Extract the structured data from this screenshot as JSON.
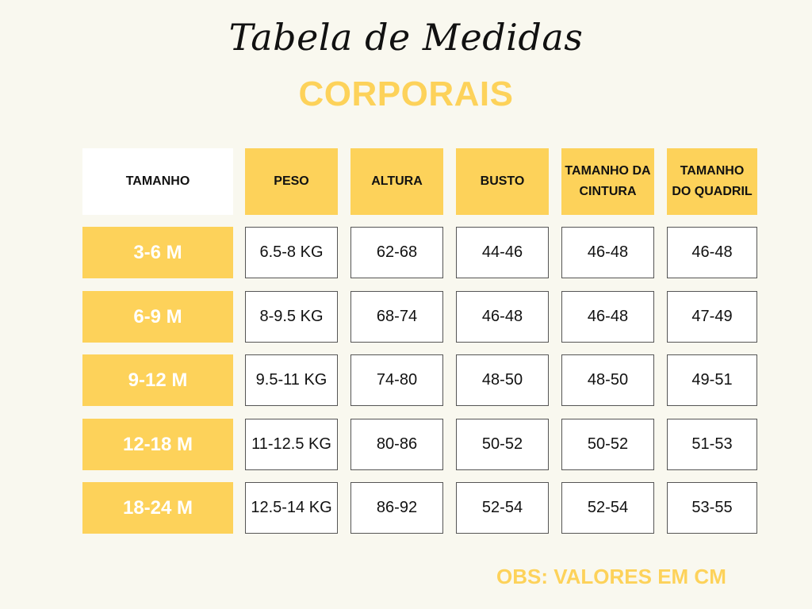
{
  "title": "Tabela de Medidas",
  "subtitle": "CORPORAIS",
  "table": {
    "headers": [
      "TAMANHO",
      "PESO",
      "ALTURA",
      "BUSTO",
      "TAMANHO DA CINTURA",
      "TAMANHO DO QUADRIL"
    ],
    "rows": [
      [
        "3-6 M",
        "6.5-8 KG",
        "62-68",
        "44-46",
        "46-48",
        "46-48"
      ],
      [
        "6-9 M",
        "8-9.5 KG",
        "68-74",
        "46-48",
        "46-48",
        "47-49"
      ],
      [
        "9-12 M",
        "9.5-11 KG",
        "74-80",
        "48-50",
        "48-50",
        "49-51"
      ],
      [
        "12-18 M",
        "11-12.5 KG",
        "80-86",
        "50-52",
        "50-52",
        "51-53"
      ],
      [
        "18-24 M",
        "12.5-14 KG",
        "86-92",
        "52-54",
        "52-54",
        "53-55"
      ]
    ]
  },
  "note": "OBS: VALORES EM CM",
  "colors": {
    "background": "#f9f8ef",
    "accent": "#fdd25a",
    "text": "#111111",
    "cell_border": "#555555"
  }
}
